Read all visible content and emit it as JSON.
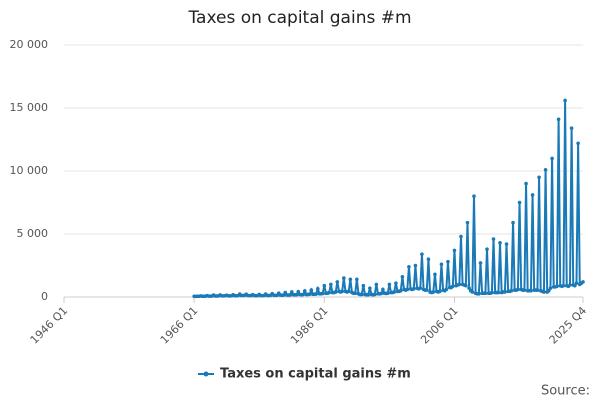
{
  "chart_data": {
    "type": "line",
    "title": "Taxes on capital gains #m",
    "source": "Source:",
    "xlim": [
      "1946 Q1",
      "2025 Q4"
    ],
    "xticks": [
      "1946 Q1",
      "1966 Q1",
      "1986 Q1",
      "2006 Q1",
      "2025 Q4"
    ],
    "ylim": [
      0,
      20000
    ],
    "yticks": [
      0,
      {
        "value": 5000,
        "label": "5 000"
      },
      {
        "value": 10000,
        "label": "10 000"
      },
      {
        "value": 15000,
        "label": "15 000"
      },
      {
        "value": 20000,
        "label": "20 000"
      }
    ],
    "grid": true,
    "legend": "bottom",
    "x": [
      "1966 Q1",
      "1966 Q2",
      "1966 Q3",
      "1966 Q4",
      "1967 Q1",
      "1967 Q2",
      "1967 Q3",
      "1967 Q4",
      "1968 Q1",
      "1968 Q2",
      "1968 Q3",
      "1968 Q4",
      "1969 Q1",
      "1969 Q2",
      "1969 Q3",
      "1969 Q4",
      "1970 Q1",
      "1970 Q2",
      "1970 Q3",
      "1970 Q4",
      "1971 Q1",
      "1971 Q2",
      "1971 Q3",
      "1971 Q4",
      "1972 Q1",
      "1972 Q2",
      "1972 Q3",
      "1972 Q4",
      "1973 Q1",
      "1973 Q2",
      "1973 Q3",
      "1973 Q4",
      "1974 Q1",
      "1974 Q2",
      "1974 Q3",
      "1974 Q4",
      "1975 Q1",
      "1975 Q2",
      "1975 Q3",
      "1975 Q4",
      "1976 Q1",
      "1976 Q2",
      "1976 Q3",
      "1976 Q4",
      "1977 Q1",
      "1977 Q2",
      "1977 Q3",
      "1977 Q4",
      "1978 Q1",
      "1978 Q2",
      "1978 Q3",
      "1978 Q4",
      "1979 Q1",
      "1979 Q2",
      "1979 Q3",
      "1979 Q4",
      "1980 Q1",
      "1980 Q2",
      "1980 Q3",
      "1980 Q4",
      "1981 Q1",
      "1981 Q2",
      "1981 Q3",
      "1981 Q4",
      "1982 Q1",
      "1982 Q2",
      "1982 Q3",
      "1982 Q4",
      "1983 Q1",
      "1983 Q2",
      "1983 Q3",
      "1983 Q4",
      "1984 Q1",
      "1984 Q2",
      "1984 Q3",
      "1984 Q4",
      "1985 Q1",
      "1985 Q2",
      "1985 Q3",
      "1985 Q4",
      "1986 Q1",
      "1986 Q2",
      "1986 Q3",
      "1986 Q4",
      "1987 Q1",
      "1987 Q2",
      "1987 Q3",
      "1987 Q4",
      "1988 Q1",
      "1988 Q2",
      "1988 Q3",
      "1988 Q4",
      "1989 Q1",
      "1989 Q2",
      "1989 Q3",
      "1989 Q4",
      "1990 Q1",
      "1990 Q2",
      "1990 Q3",
      "1990 Q4",
      "1991 Q1",
      "1991 Q2",
      "1991 Q3",
      "1991 Q4",
      "1992 Q1",
      "1992 Q2",
      "1992 Q3",
      "1992 Q4",
      "1993 Q1",
      "1993 Q2",
      "1993 Q3",
      "1993 Q4",
      "1994 Q1",
      "1994 Q2",
      "1994 Q3",
      "1994 Q4",
      "1995 Q1",
      "1995 Q2",
      "1995 Q3",
      "1995 Q4",
      "1996 Q1",
      "1996 Q2",
      "1996 Q3",
      "1996 Q4",
      "1997 Q1",
      "1997 Q2",
      "1997 Q3",
      "1997 Q4",
      "1998 Q1",
      "1998 Q2",
      "1998 Q3",
      "1998 Q4",
      "1999 Q1",
      "1999 Q2",
      "1999 Q3",
      "1999 Q4",
      "2000 Q1",
      "2000 Q2",
      "2000 Q3",
      "2000 Q4",
      "2001 Q1",
      "2001 Q2",
      "2001 Q3",
      "2001 Q4",
      "2002 Q1",
      "2002 Q2",
      "2002 Q3",
      "2002 Q4",
      "2003 Q1",
      "2003 Q2",
      "2003 Q3",
      "2003 Q4",
      "2004 Q1",
      "2004 Q2",
      "2004 Q3",
      "2004 Q4",
      "2005 Q1",
      "2005 Q2",
      "2005 Q3",
      "2005 Q4",
      "2006 Q1",
      "2006 Q2",
      "2006 Q3",
      "2006 Q4",
      "2007 Q1",
      "2007 Q2",
      "2007 Q3",
      "2007 Q4",
      "2008 Q1",
      "2008 Q2",
      "2008 Q3",
      "2008 Q4",
      "2009 Q1",
      "2009 Q2",
      "2009 Q3",
      "2009 Q4",
      "2010 Q1",
      "2010 Q2",
      "2010 Q3",
      "2010 Q4",
      "2011 Q1",
      "2011 Q2",
      "2011 Q3",
      "2011 Q4",
      "2012 Q1",
      "2012 Q2",
      "2012 Q3",
      "2012 Q4",
      "2013 Q1",
      "2013 Q2",
      "2013 Q3",
      "2013 Q4",
      "2014 Q1",
      "2014 Q2",
      "2014 Q3",
      "2014 Q4",
      "2015 Q1",
      "2015 Q2",
      "2015 Q3",
      "2015 Q4",
      "2016 Q1",
      "2016 Q2",
      "2016 Q3",
      "2016 Q4",
      "2017 Q1",
      "2017 Q2",
      "2017 Q3",
      "2017 Q4",
      "2018 Q1",
      "2018 Q2",
      "2018 Q3",
      "2018 Q4",
      "2019 Q1",
      "2019 Q2",
      "2019 Q3",
      "2019 Q4",
      "2020 Q1",
      "2020 Q2",
      "2020 Q3",
      "2020 Q4",
      "2021 Q1",
      "2021 Q2",
      "2021 Q3",
      "2021 Q4",
      "2022 Q1",
      "2022 Q2",
      "2022 Q3",
      "2022 Q4",
      "2023 Q1",
      "2023 Q2",
      "2023 Q3",
      "2023 Q4",
      "2024 Q1",
      "2024 Q2",
      "2024 Q3",
      "2024 Q4",
      "2025 Q1",
      "2025 Q2",
      "2025 Q3",
      "2025 Q4"
    ],
    "series": [
      {
        "name": "Taxes on capital gains #m",
        "color": "#1a7ab8",
        "values": [
          60,
          50,
          55,
          60,
          90,
          60,
          60,
          70,
          110,
          70,
          70,
          80,
          150,
          80,
          80,
          90,
          160,
          90,
          90,
          100,
          140,
          90,
          90,
          100,
          170,
          100,
          100,
          110,
          230,
          120,
          120,
          130,
          220,
          120,
          110,
          120,
          180,
          110,
          100,
          110,
          200,
          110,
          110,
          120,
          230,
          120,
          120,
          130,
          260,
          130,
          130,
          140,
          300,
          150,
          140,
          150,
          350,
          160,
          150,
          160,
          400,
          180,
          170,
          180,
          420,
          190,
          180,
          190,
          480,
          200,
          200,
          220,
          550,
          220,
          220,
          240,
          650,
          260,
          250,
          280,
          900,
          300,
          300,
          350,
          1000,
          350,
          350,
          400,
          1200,
          450,
          400,
          450,
          1500,
          450,
          400,
          450,
          1400,
          350,
          300,
          300,
          1400,
          250,
          200,
          200,
          900,
          200,
          180,
          180,
          700,
          200,
          180,
          200,
          1000,
          250,
          250,
          280,
          600,
          300,
          280,
          300,
          1000,
          350,
          350,
          400,
          1100,
          450,
          450,
          500,
          1600,
          600,
          550,
          600,
          2400,
          650,
          600,
          650,
          2500,
          700,
          650,
          700,
          3400,
          600,
          550,
          550,
          3000,
          400,
          350,
          400,
          1800,
          450,
          400,
          450,
          2600,
          550,
          500,
          600,
          2800,
          750,
          750,
          850,
          3700,
          900,
          950,
          1000,
          4800,
          1000,
          950,
          900,
          5900,
          700,
          500,
          400,
          8000,
          300,
          250,
          250,
          2700,
          300,
          300,
          300,
          3800,
          300,
          300,
          350,
          4600,
          350,
          350,
          350,
          4300,
          350,
          400,
          400,
          4200,
          450,
          450,
          500,
          5900,
          550,
          550,
          600,
          7500,
          600,
          550,
          550,
          9000,
          500,
          500,
          500,
          8100,
          550,
          550,
          550,
          9500,
          500,
          450,
          400,
          10100,
          400,
          500,
          700,
          11000,
          800,
          800,
          850,
          14100,
          900,
          850,
          900,
          15600,
          900,
          850,
          950,
          13400,
          950,
          900,
          1100,
          12200,
          1000,
          1100,
          1200
        ]
      }
    ]
  }
}
